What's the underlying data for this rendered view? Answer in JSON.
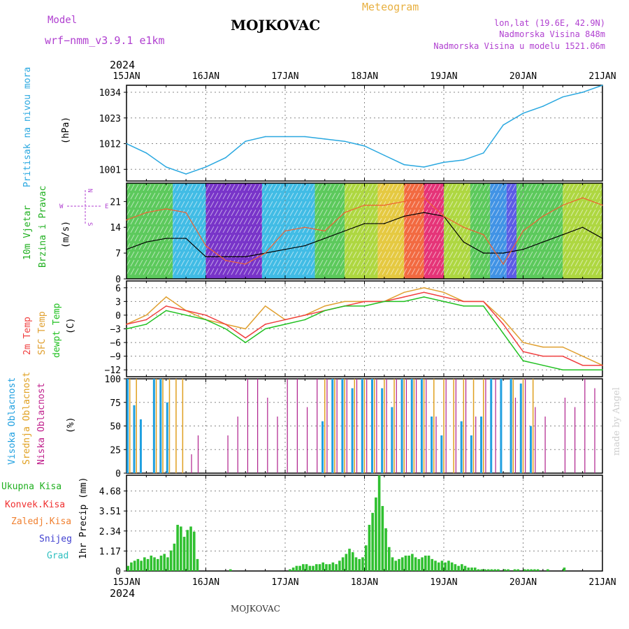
{
  "header": {
    "model_label": "Model",
    "model_value": "wrf−nmm_v3.9.1  e1km",
    "title": "MOJKOVAC",
    "subtitle": "Meteogram",
    "coords": "lon,lat (19.6E, 42.9N)",
    "altitude": "Nadmorska Visina 848m",
    "model_altitude": "Nadmorska Visina u modelu 1521.06m",
    "footer": "MOJKOVAC",
    "watermark": "made by Angel"
  },
  "time_axis": {
    "year": "2024",
    "labels": [
      "15JAN",
      "16JAN",
      "17JAN",
      "18JAN",
      "19JAN",
      "20JAN",
      "21JAN"
    ],
    "hours_span": 144
  },
  "colors": {
    "pressure": "#2aa8e0",
    "temp2m": "#f04040",
    "sfc_temp": "#e0a030",
    "dewpt": "#20c020",
    "high_cloud": "#20a0e0",
    "mid_cloud": "#e0a020",
    "low_cloud": "#b0208c",
    "precip": "#30c030",
    "convective": "#f03030",
    "snow": "#4040d0",
    "graupel": "#30c0c0"
  },
  "chart_data": [
    {
      "type": "line",
      "ylabel_main": "Pritisak na nivou mora",
      "ylabel_unit": "(hPa)",
      "yticks": [
        "1001",
        "1012",
        "1023",
        "1034"
      ],
      "ylim": [
        996,
        1037
      ],
      "x": [
        0,
        6,
        12,
        18,
        24,
        30,
        36,
        42,
        48,
        54,
        60,
        66,
        72,
        78,
        84,
        90,
        96,
        102,
        108,
        114,
        120,
        126,
        132,
        138,
        144
      ],
      "series": [
        {
          "values": [
            1012,
            1008,
            1002,
            999,
            1002,
            1006,
            1013,
            1015,
            1015,
            1015,
            1014,
            1013,
            1011,
            1007,
            1003,
            1002,
            1004,
            1005,
            1008,
            1020,
            1025,
            1028,
            1032,
            1034,
            1037
          ]
        }
      ]
    },
    {
      "type": "line",
      "ylabel_main": "10m Vjetar",
      "ylabel_main2": "Brzina i Pravac",
      "ylabel_unit": "(m/s)",
      "compass": {
        "n": "N",
        "s": "S",
        "e": "E",
        "w": "W"
      },
      "yticks": [
        "0",
        "7",
        "14",
        "21"
      ],
      "ylim": [
        0,
        26
      ],
      "x": [
        0,
        6,
        12,
        18,
        24,
        30,
        36,
        42,
        48,
        54,
        60,
        66,
        72,
        78,
        84,
        90,
        96,
        102,
        108,
        114,
        120,
        126,
        132,
        138,
        144
      ],
      "series": [
        {
          "values": [
            8,
            10,
            11,
            11,
            6,
            6,
            6,
            7,
            8,
            9,
            11,
            13,
            15,
            15,
            17,
            18,
            17,
            10,
            7,
            7,
            8,
            10,
            12,
            14,
            11
          ]
        },
        {
          "values": [
            16,
            18,
            19,
            18,
            9,
            5,
            4,
            7,
            13,
            14,
            13,
            18,
            20,
            20,
            21,
            22,
            17,
            14,
            12,
            4,
            13,
            17,
            20,
            22,
            20
          ]
        }
      ]
    },
    {
      "type": "line",
      "ylabel_main": "2m Temp",
      "ylabel_main2": "SFC Temp",
      "ylabel_main3": "dewpt Temp",
      "ylabel_unit": "(C)",
      "yticks": [
        "−12",
        "−9",
        "−6",
        "−3",
        "0",
        "3",
        "6"
      ],
      "ylim": [
        -13.5,
        7.5
      ],
      "x": [
        0,
        6,
        12,
        18,
        24,
        30,
        36,
        42,
        48,
        54,
        60,
        66,
        72,
        78,
        84,
        90,
        96,
        102,
        108,
        114,
        120,
        126,
        132,
        138,
        144
      ],
      "series": [
        {
          "values": [
            -2,
            -1,
            2,
            1,
            0,
            -2,
            -5,
            -2,
            -1,
            0,
            1,
            2,
            3,
            3,
            4,
            5,
            4,
            3,
            3,
            -2,
            -8,
            -9,
            -9,
            -11,
            -11
          ]
        },
        {
          "values": [
            -2,
            0,
            4,
            1,
            -1,
            -2,
            -3,
            2,
            -1,
            0,
            2,
            3,
            3,
            3,
            5,
            6,
            5,
            3,
            3,
            -1,
            -6,
            -7,
            -7,
            -9,
            -11
          ]
        },
        {
          "values": [
            -3,
            -2,
            1,
            0,
            -1,
            -3,
            -6,
            -3,
            -2,
            -1,
            1,
            2,
            2,
            3,
            3,
            4,
            3,
            2,
            2,
            -4,
            -10,
            -11,
            -12,
            -12,
            -12
          ]
        }
      ]
    },
    {
      "type": "bar",
      "ylabel_main": "Visoka Oblacnost",
      "ylabel_main2": "Srednja Oblacnost",
      "ylabel_main3": "Niska Oblacnost",
      "ylabel_unit": "(%)",
      "yticks": [
        "0",
        "25",
        "50",
        "75",
        "100"
      ],
      "ylim": [
        0,
        100
      ],
      "x": [
        1,
        3,
        5,
        7,
        9,
        11,
        13,
        15,
        17,
        19,
        21,
        24,
        27,
        30,
        33,
        36,
        39,
        42,
        45,
        48,
        51,
        54,
        57,
        60,
        63,
        66,
        69,
        72,
        75,
        78,
        81,
        84,
        87,
        90,
        93,
        96,
        99,
        102,
        105,
        108,
        111,
        114,
        117,
        120,
        123,
        126,
        129,
        132,
        135,
        138,
        141
      ],
      "series": [
        {
          "values": [
            100,
            72,
            57,
            0,
            100,
            100,
            75,
            0,
            0,
            0,
            0,
            0,
            0,
            0,
            0,
            0,
            0,
            0,
            0,
            0,
            0,
            0,
            0,
            55,
            100,
            100,
            90,
            100,
            100,
            90,
            70,
            100,
            100,
            100,
            60,
            40,
            0,
            55,
            40,
            60,
            100,
            100,
            100,
            95,
            50,
            0,
            0,
            0,
            0,
            0,
            0
          ]
        },
        {
          "values": [
            100,
            100,
            0,
            0,
            100,
            100,
            100,
            100,
            100,
            0,
            0,
            0,
            0,
            0,
            0,
            0,
            0,
            0,
            0,
            0,
            0,
            0,
            0,
            100,
            100,
            100,
            100,
            100,
            100,
            100,
            100,
            100,
            100,
            100,
            100,
            100,
            100,
            100,
            100,
            100,
            0,
            0,
            100,
            100,
            100,
            0,
            0,
            0,
            0,
            0,
            0
          ]
        },
        {
          "values": [
            0,
            0,
            0,
            0,
            0,
            0,
            0,
            0,
            0,
            20,
            40,
            0,
            0,
            40,
            60,
            100,
            100,
            80,
            60,
            100,
            100,
            70,
            100,
            100,
            100,
            100,
            100,
            100,
            100,
            100,
            100,
            100,
            100,
            100,
            60,
            100,
            100,
            100,
            60,
            100,
            100,
            0,
            80,
            100,
            70,
            60,
            0,
            80,
            70,
            100,
            90
          ]
        }
      ]
    },
    {
      "type": "bar",
      "ylabel_main": "1hr Precip (mm)",
      "legend": [
        "Ukupna Kisa",
        "Konvek.Kisa",
        "Zaledj.Kisa",
        "Snijeg",
        "Grad"
      ],
      "yticks": [
        "0",
        "1.17",
        "2.34",
        "3.51",
        "4.68"
      ],
      "ylim": [
        0,
        5.6
      ],
      "x": [
        0,
        1,
        2,
        3,
        4,
        5,
        6,
        7,
        8,
        9,
        10,
        11,
        12,
        13,
        14,
        15,
        16,
        17,
        18,
        19,
        20,
        21,
        22,
        23,
        24,
        25,
        26,
        27,
        28,
        29,
        30,
        31,
        32,
        33,
        34,
        35,
        36,
        37,
        38,
        39,
        40,
        41,
        42,
        43,
        44,
        45,
        46,
        47,
        48,
        49,
        50,
        51,
        52,
        53,
        54,
        55,
        56,
        57,
        58,
        59,
        60,
        61,
        62,
        63,
        64,
        65,
        66,
        67,
        68,
        69,
        70,
        71,
        72,
        73,
        74,
        75,
        76,
        77,
        78,
        79,
        80,
        81,
        82,
        83,
        84,
        85,
        86,
        87,
        88,
        89,
        90,
        91,
        92,
        93,
        94,
        95,
        96,
        97,
        98,
        99,
        100,
        101,
        102,
        103,
        104,
        105,
        106,
        107,
        108,
        109,
        110,
        111,
        112,
        113,
        114,
        115,
        116,
        117,
        118,
        119,
        120,
        121,
        122,
        123,
        124,
        125,
        126,
        127,
        128,
        129,
        130,
        131,
        132,
        133,
        134,
        135,
        136,
        137,
        138,
        139,
        140,
        141,
        142,
        143
      ],
      "values": [
        0.3,
        0.5,
        0.6,
        0.7,
        0.6,
        0.8,
        0.7,
        0.9,
        0.8,
        0.7,
        0.9,
        1.0,
        0.8,
        1.2,
        1.6,
        2.7,
        2.6,
        2.0,
        2.4,
        2.6,
        2.3,
        0.7,
        0,
        0,
        0,
        0,
        0,
        0,
        0,
        0,
        0,
        0.1,
        0,
        0,
        0,
        0,
        0,
        0,
        0,
        0,
        0,
        0,
        0,
        0,
        0,
        0,
        0,
        0,
        0,
        0.1,
        0.2,
        0.3,
        0.3,
        0.4,
        0.4,
        0.3,
        0.3,
        0.4,
        0.4,
        0.5,
        0.4,
        0.4,
        0.5,
        0.4,
        0.6,
        0.8,
        1.0,
        1.3,
        1.1,
        0.8,
        0.7,
        0.8,
        1.5,
        2.7,
        3.4,
        4.3,
        5.6,
        3.8,
        2.5,
        1.4,
        0.8,
        0.6,
        0.7,
        0.8,
        0.9,
        0.9,
        1.0,
        0.8,
        0.7,
        0.8,
        0.9,
        0.9,
        0.7,
        0.6,
        0.5,
        0.6,
        0.5,
        0.6,
        0.5,
        0.4,
        0.3,
        0.4,
        0.3,
        0.2,
        0.2,
        0.2,
        0.1,
        0.1,
        0.1,
        0.1,
        0.1,
        0.1,
        0.1,
        0.0,
        0.1,
        0.1,
        0.0,
        0.1,
        0.1,
        0.0,
        0.1,
        0.1,
        0.1,
        0.1,
        0.1,
        0.0,
        0.0,
        0.1,
        0.0,
        0.0,
        0.0,
        0.0,
        0.2,
        0.0,
        0.0,
        0.0,
        0.0,
        0.0,
        0.0,
        0.0,
        0.0,
        0.0,
        0.0,
        0.0
      ]
    }
  ]
}
